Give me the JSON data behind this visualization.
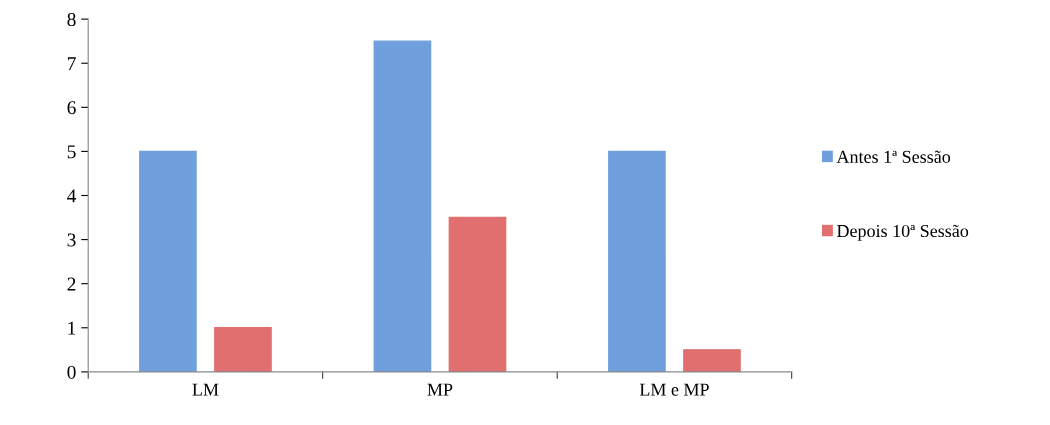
{
  "chart_data": {
    "type": "bar",
    "categories": [
      "LM",
      "MP",
      "LM e MP"
    ],
    "series": [
      {
        "name": "Antes 1ª Sessão",
        "color": "#6f9fdc",
        "values": [
          5,
          7.5,
          5
        ]
      },
      {
        "name": "Depois 10ª Sessão",
        "color": "#e26f6f",
        "values": [
          1,
          3.5,
          0.5
        ]
      }
    ],
    "ylim": [
      0,
      8
    ],
    "yticks": [
      0,
      1,
      2,
      3,
      4,
      5,
      6,
      7,
      8
    ],
    "grid": false,
    "legend": "right"
  }
}
